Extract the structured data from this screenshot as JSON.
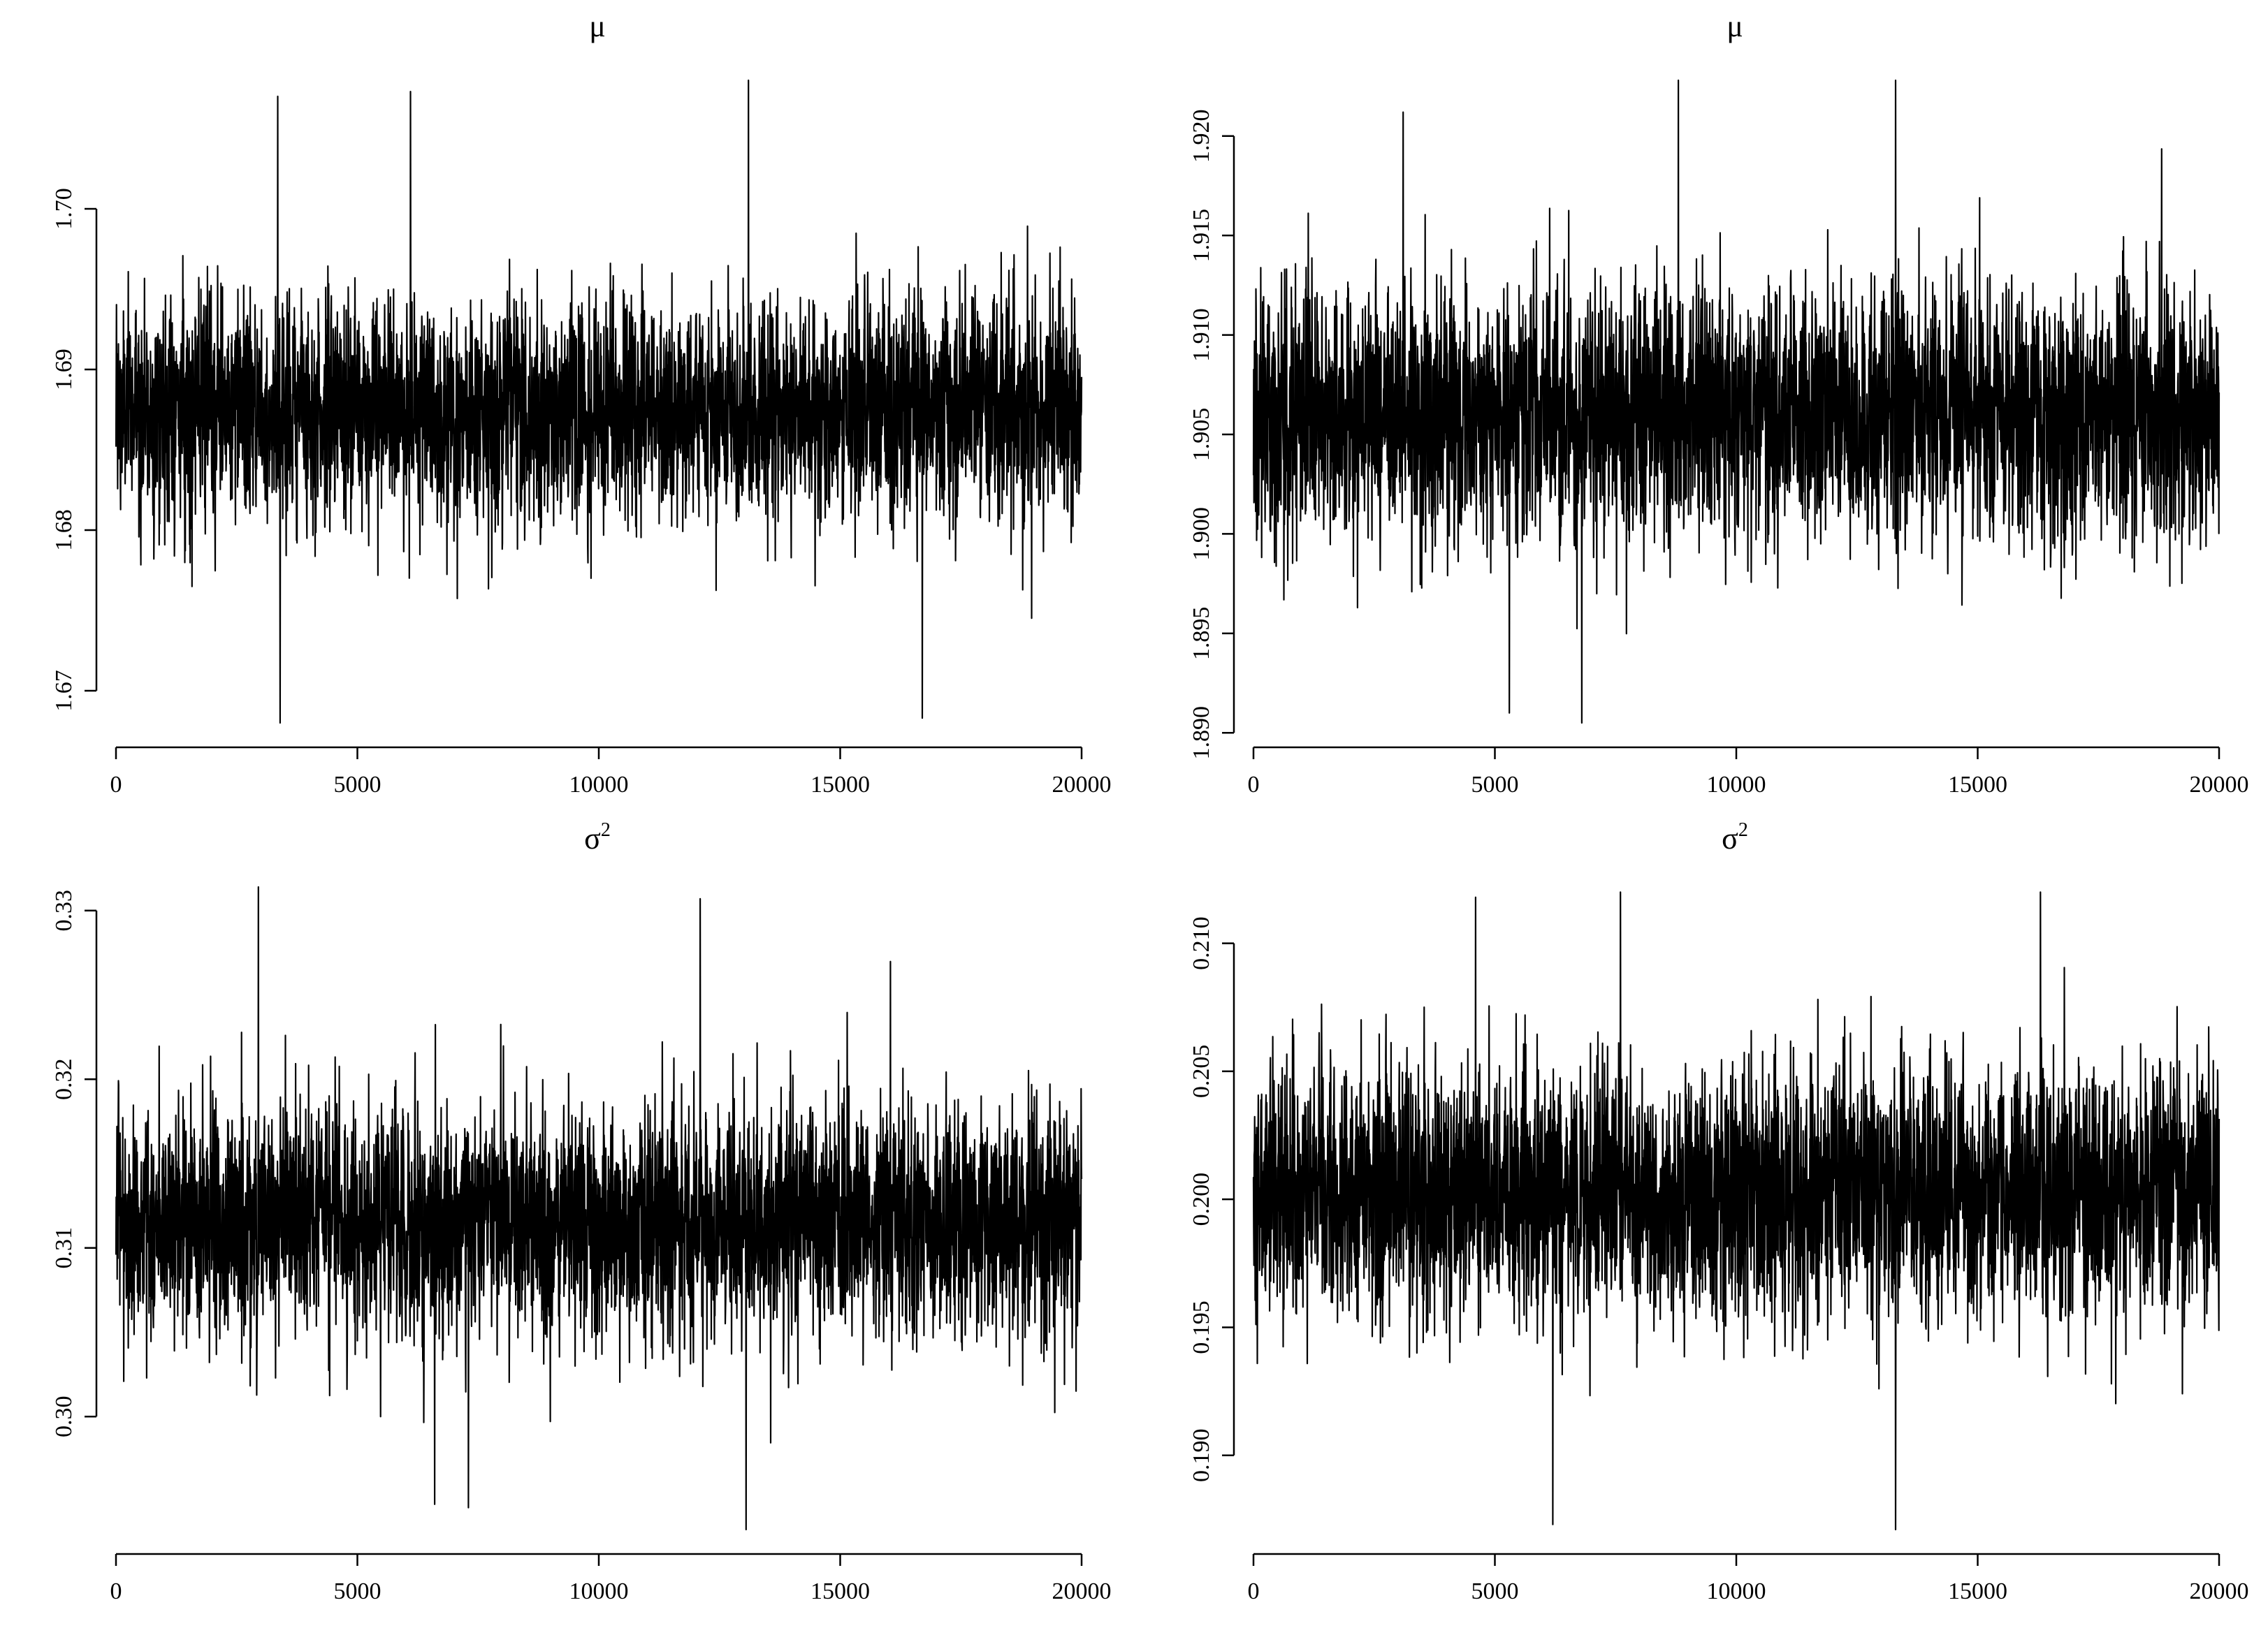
{
  "figure": {
    "background": "#ffffff",
    "trace_color": "#000000"
  },
  "chart_data": [
    {
      "type": "line",
      "title": "μ",
      "title_base": "μ",
      "title_sup": "",
      "xlabel": "",
      "ylabel": "",
      "xlim": [
        0,
        20000
      ],
      "ylim": [
        1.668,
        1.708
      ],
      "xticks": [
        0,
        5000,
        10000,
        15000,
        20000
      ],
      "xtick_labels": [
        "0",
        "5000",
        "10000",
        "15000",
        "20000"
      ],
      "yticks": [
        1.67,
        1.68,
        1.69,
        1.7
      ],
      "ytick_labels": [
        "1.67",
        "1.68",
        "1.69",
        "1.70"
      ],
      "grid": false,
      "legend": "none",
      "series": [
        {
          "sample_count": 20000,
          "center": 1.6875,
          "sd": 0.0035,
          "min": 1.668,
          "max": 1.708,
          "extremes": [
            [
              3400,
              1.668
            ],
            [
              16700,
              1.6683
            ],
            [
              13100,
              1.708
            ],
            [
              6100,
              1.7073
            ],
            [
              3350,
              1.707
            ]
          ]
        }
      ]
    },
    {
      "type": "line",
      "title": "μ",
      "title_base": "μ",
      "title_sup": "",
      "xlabel": "",
      "ylabel": "",
      "xlim": [
        0,
        20000
      ],
      "ylim": [
        1.8905,
        1.9228
      ],
      "xticks": [
        0,
        5000,
        10000,
        15000,
        20000
      ],
      "xtick_labels": [
        "0",
        "5000",
        "10000",
        "15000",
        "20000"
      ],
      "yticks": [
        1.89,
        1.895,
        1.9,
        1.905,
        1.91,
        1.915,
        1.92
      ],
      "ytick_labels": [
        "1.890",
        "1.895",
        "1.900",
        "1.905",
        "1.910",
        "1.915",
        "1.920"
      ],
      "grid": false,
      "legend": "none",
      "series": [
        {
          "sample_count": 20000,
          "center": 1.906,
          "sd": 0.0032,
          "min": 1.8905,
          "max": 1.9228,
          "extremes": [
            [
              6800,
              1.8905
            ],
            [
              5300,
              1.891
            ],
            [
              8800,
              1.9228
            ],
            [
              13300,
              1.9228
            ],
            [
              3100,
              1.9212
            ]
          ]
        }
      ]
    },
    {
      "type": "line",
      "title": "σ²",
      "title_base": "σ",
      "title_sup": "2",
      "xlabel": "",
      "ylabel": "",
      "xlim": [
        0,
        20000
      ],
      "ylim": [
        0.2933,
        0.3314
      ],
      "xticks": [
        0,
        5000,
        10000,
        15000,
        20000
      ],
      "xtick_labels": [
        "0",
        "5000",
        "10000",
        "15000",
        "20000"
      ],
      "yticks": [
        0.3,
        0.31,
        0.32,
        0.33
      ],
      "ytick_labels": [
        "0.30",
        "0.31",
        "0.32",
        "0.33"
      ],
      "grid": false,
      "legend": "none",
      "series": [
        {
          "sample_count": 20000,
          "center": 0.3115,
          "sd": 0.0035,
          "min": 0.2933,
          "max": 0.3314,
          "extremes": [
            [
              13050,
              0.2933
            ],
            [
              6600,
              0.2948
            ],
            [
              7300,
              0.2946
            ],
            [
              2950,
              0.3314
            ],
            [
              12100,
              0.3307
            ]
          ]
        }
      ]
    },
    {
      "type": "line",
      "title": "σ²",
      "title_base": "σ",
      "title_sup": "2",
      "xlabel": "",
      "ylabel": "",
      "xlim": [
        0,
        20000
      ],
      "ylim": [
        0.1871,
        0.2122
      ],
      "xticks": [
        0,
        5000,
        10000,
        15000,
        20000
      ],
      "xtick_labels": [
        "0",
        "5000",
        "10000",
        "15000",
        "20000"
      ],
      "yticks": [
        0.19,
        0.195,
        0.2,
        0.205,
        0.21
      ],
      "ytick_labels": [
        "0.190",
        "0.195",
        "0.200",
        "0.205",
        "0.210"
      ],
      "grid": false,
      "legend": "none",
      "series": [
        {
          "sample_count": 20000,
          "center": 0.2003,
          "sd": 0.0025,
          "min": 0.1871,
          "max": 0.2122,
          "extremes": [
            [
              13300,
              0.1871
            ],
            [
              6200,
              0.1873
            ],
            [
              4600,
              0.2118
            ],
            [
              7600,
              0.212
            ],
            [
              16300,
              0.212
            ]
          ]
        }
      ]
    }
  ]
}
